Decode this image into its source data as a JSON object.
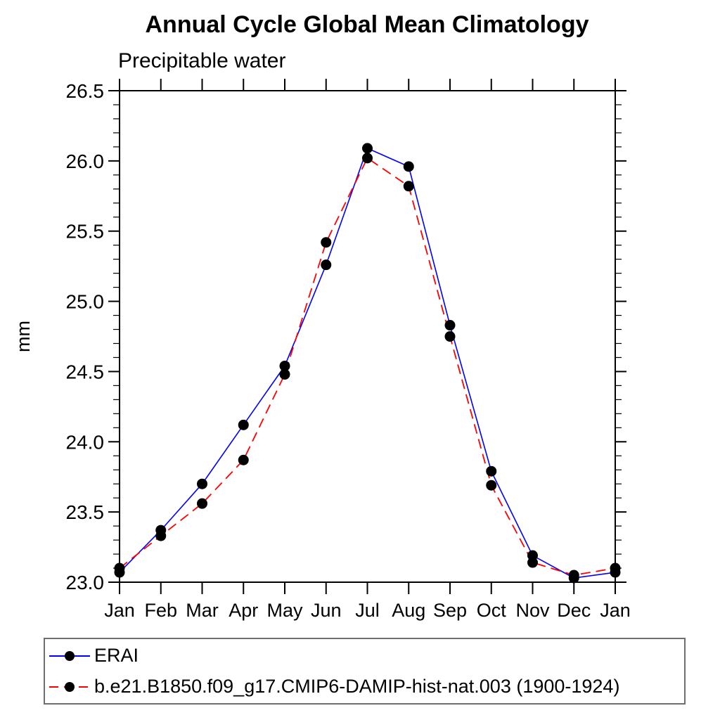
{
  "page": {
    "background": "#ffffff"
  },
  "header": {
    "title": "Annual Cycle Global Mean Climatology",
    "subtitle": "Precipitable water"
  },
  "chart_data": {
    "type": "line",
    "title": "Annual Cycle Global Mean Climatology",
    "subtitle": "Precipitable water",
    "xlabel": "",
    "ylabel": "mm",
    "categories": [
      "Jan",
      "Feb",
      "Mar",
      "Apr",
      "May",
      "Jun",
      "Jul",
      "Aug",
      "Sep",
      "Oct",
      "Nov",
      "Dec",
      "Jan"
    ],
    "ylim": [
      23.0,
      26.5
    ],
    "y_major_ticks": [
      23.0,
      23.5,
      24.0,
      24.5,
      25.0,
      25.5,
      26.0,
      26.5
    ],
    "y_minor_step": 0.1,
    "grid": false,
    "legend_position": "bottom",
    "marker_color": "#000000",
    "series": [
      {
        "name": "ERAI",
        "color": "#0000ff",
        "style": "solid",
        "marker": "black-dot",
        "values": [
          23.07,
          23.37,
          23.7,
          24.12,
          24.54,
          25.26,
          26.09,
          25.96,
          24.83,
          23.79,
          23.19,
          23.03,
          23.07
        ]
      },
      {
        "name": "b.e21.B1850.f09_g17.CMIP6-DAMIP-hist-nat.003 (1900-1924)",
        "color": "#ff0000",
        "style": "dashed",
        "marker": "black-dot",
        "values": [
          23.1,
          23.33,
          23.56,
          23.87,
          24.48,
          25.42,
          26.02,
          25.82,
          24.75,
          23.69,
          23.14,
          23.05,
          23.1
        ]
      }
    ]
  }
}
